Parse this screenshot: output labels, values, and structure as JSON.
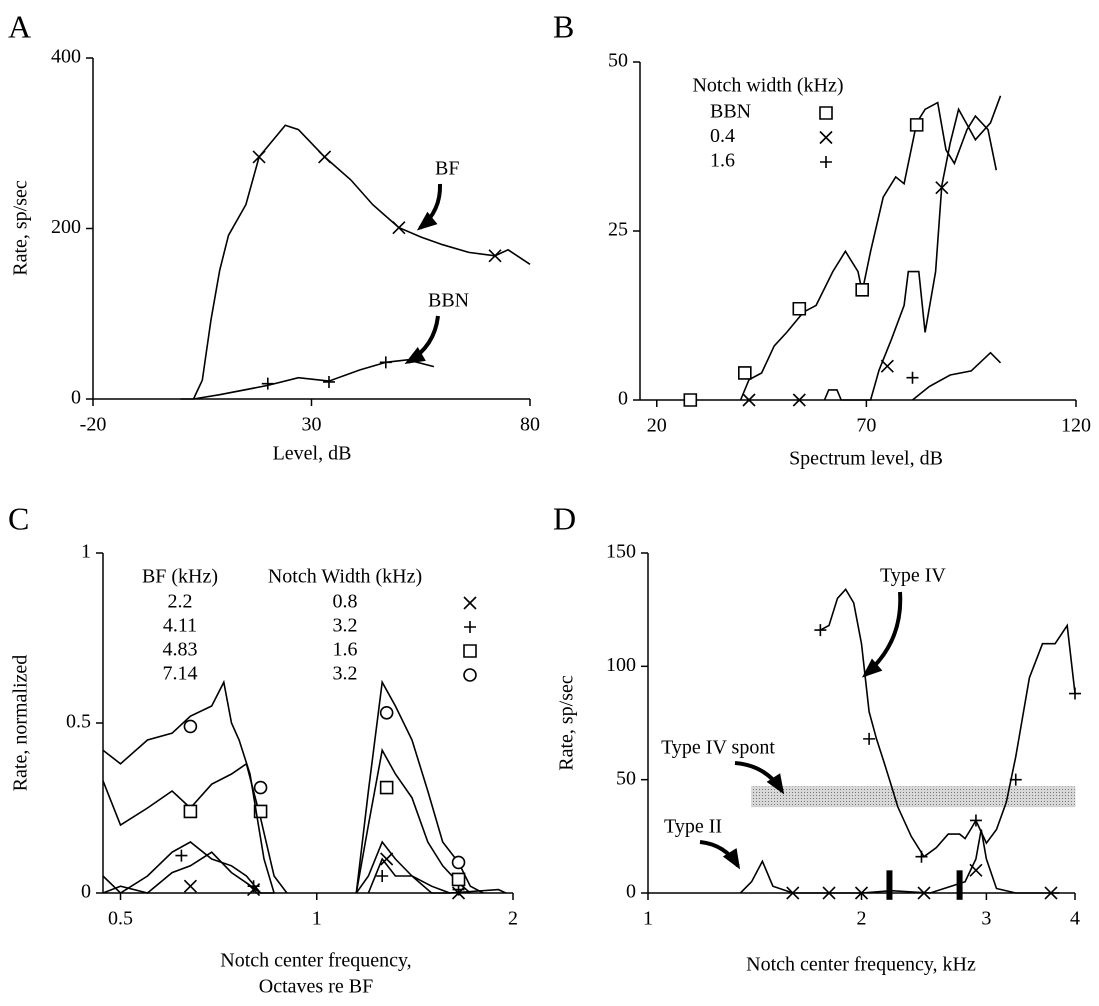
{
  "chart_data": [
    {
      "type": "line",
      "title": "A",
      "xlabel": [
        "Level, dB"
      ],
      "ylabel": "Rate, sp/sec",
      "color": "#000000",
      "xlim": [
        -20,
        80
      ],
      "xticks": [
        -20,
        30,
        80
      ],
      "ylim": [
        0,
        400
      ],
      "yticks": [
        0,
        200,
        400
      ],
      "log": false,
      "series": [
        {
          "name": "BF",
          "marker": "x",
          "x": [
            3,
            5,
            7,
            9,
            11,
            15,
            18,
            24,
            27,
            33,
            39,
            44,
            50,
            55,
            60,
            66,
            72,
            75,
            80
          ],
          "values": [
            0,
            22,
            93,
            151,
            192,
            228,
            284,
            321,
            316,
            284,
            257,
            228,
            201,
            190,
            181,
            172,
            168,
            175,
            158
          ],
          "markers": {
            "x": [
              18,
              33,
              50,
              72
            ],
            "values": [
              284,
              284,
              201,
              168
            ]
          }
        },
        {
          "name": "BBN",
          "marker": "+",
          "x": [
            0,
            3,
            9,
            20,
            27,
            34,
            41,
            47,
            52,
            58
          ],
          "values": [
            0,
            0,
            5,
            16,
            25,
            21,
            34,
            43,
            46,
            38
          ],
          "markers": {
            "x": [
              20,
              34,
              47
            ],
            "values": [
              18,
              20,
              43
            ]
          }
        }
      ],
      "annotations": [
        {
          "text": "BF"
        },
        {
          "text": "BBN"
        }
      ]
    },
    {
      "type": "line",
      "title": "B",
      "xlabel": [
        "Spectrum level, dB"
      ],
      "color": "#000000",
      "xlim": [
        16,
        120
      ],
      "xticks": [
        20,
        70,
        120
      ],
      "ylim": [
        0,
        50
      ],
      "yticks": [
        0,
        25,
        50
      ],
      "log": false,
      "legend_title": "Notch width (kHz)",
      "series": [
        {
          "name": "BBN",
          "marker": "square",
          "x": [
            40,
            42,
            45,
            48,
            51,
            55,
            58,
            62,
            65,
            68,
            69,
            71,
            74,
            77,
            79,
            82,
            84,
            87,
            89,
            91,
            94,
            96,
            99,
            101
          ],
          "values": [
            0,
            3,
            4,
            8,
            10,
            13,
            14,
            19,
            22,
            19,
            16,
            22,
            30,
            33,
            32,
            41,
            43,
            44,
            37,
            35,
            40,
            42,
            40,
            34
          ],
          "markers": {
            "x": [
              28,
              41,
              54,
              69,
              82
            ],
            "values": [
              0,
              4,
              13.5,
              16.3,
              40.7
            ]
          }
        },
        {
          "name": "0.4",
          "marker": "x",
          "x": [
            60,
            61,
            63,
            64,
            71,
            73,
            76,
            79,
            80,
            82.5,
            84,
            86.5,
            88,
            90,
            92,
            96,
            99.6,
            102
          ],
          "values": [
            0,
            1.5,
            1.5,
            0,
            0,
            4.4,
            9,
            14,
            19,
            19,
            10,
            19,
            31.7,
            38,
            43,
            38.5,
            41,
            45
          ],
          "markers": {
            "x": [
              42,
              54,
              75,
              88
            ],
            "values": [
              0,
              0,
              5,
              31.4
            ]
          }
        },
        {
          "name": "1.6",
          "marker": "+",
          "x": [
            81,
            85,
            90,
            95,
            99.6,
            102
          ],
          "values": [
            0,
            2,
            3.7,
            4.3,
            7,
            5.5
          ],
          "markers": {
            "x": [
              81
            ],
            "values": [
              3.3
            ]
          }
        }
      ]
    },
    {
      "type": "line",
      "title": "C",
      "xlabel": [
        "Notch center frequency,",
        "Octaves re BF"
      ],
      "ylabel": "Rate, normalized",
      "color": "#000000",
      "xlim": [
        0.47,
        2
      ],
      "xticks": [
        0.5,
        1,
        2
      ],
      "ylim": [
        0,
        1
      ],
      "yticks": [
        0,
        0.5,
        1
      ],
      "log": true,
      "legend_headers": [
        "BF (kHz)",
        "Notch Width (kHz)"
      ],
      "series": [
        {
          "name": "2.2",
          "notch_width": "0.8",
          "marker": "x",
          "x": [
            0.47,
            0.5,
            0.55,
            0.6,
            0.64,
            0.69,
            0.74,
            0.78,
            0.82,
            1.0,
            1.2,
            1.26,
            1.32,
            1.4,
            1.5,
            1.6,
            1.9,
            1.95
          ],
          "values": [
            0,
            0.02,
            0,
            0.06,
            0.08,
            0.12,
            0.06,
            0.03,
            0,
            null,
            0,
            0.1,
            0.05,
            0.05,
            0,
            0,
            0.01,
            0
          ],
          "markers": {
            "x": [
              0.64,
              0.8,
              1.28,
              1.65
            ],
            "values": [
              0.02,
              0.01,
              0.1,
              0
            ]
          }
        },
        {
          "name": "4.11",
          "notch_width": "3.2",
          "marker": "+",
          "x": [
            0.47,
            0.5,
            0.55,
            0.6,
            0.64,
            0.69,
            0.74,
            0.78,
            0.82,
            0.86,
            1.0,
            1.15,
            1.2,
            1.26,
            1.32,
            1.4,
            1.5,
            1.6
          ],
          "values": [
            0.05,
            0,
            0.05,
            0.12,
            0.15,
            0.1,
            0.08,
            0.05,
            0,
            0,
            null,
            0,
            0.05,
            0.15,
            0.1,
            0.05,
            0.02,
            0
          ],
          "markers": {
            "x": [
              0.62,
              0.8,
              1.26,
              1.65
            ],
            "values": [
              0.11,
              0.02,
              0.05,
              0.01
            ]
          }
        },
        {
          "name": "4.83",
          "notch_width": "1.6",
          "marker": "square",
          "x": [
            0.47,
            0.5,
            0.55,
            0.6,
            0.64,
            0.69,
            0.74,
            0.78,
            0.82,
            0.86,
            0.9,
            1.0,
            1.15,
            1.2,
            1.26,
            1.32,
            1.4,
            1.48,
            1.56,
            1.65,
            1.72
          ],
          "values": [
            0.33,
            0.2,
            0.25,
            0.3,
            0.25,
            0.32,
            0.35,
            0.38,
            0.22,
            0.05,
            0,
            null,
            0,
            0.2,
            0.42,
            0.35,
            0.28,
            0.15,
            0.08,
            0.03,
            0
          ],
          "markers": {
            "x": [
              0.64,
              0.82,
              1.28,
              1.65
            ],
            "values": [
              0.24,
              0.24,
              0.31,
              0.04
            ]
          }
        },
        {
          "name": "7.14",
          "notch_width": "3.2",
          "marker": "circle",
          "x": [
            0.47,
            0.5,
            0.55,
            0.6,
            0.64,
            0.69,
            0.72,
            0.74,
            0.76,
            0.79,
            0.83,
            0.86,
            1.0,
            1.15,
            1.2,
            1.26,
            1.32,
            1.4,
            1.48,
            1.56,
            1.65,
            1.72,
            1.8
          ],
          "values": [
            0.42,
            0.38,
            0.45,
            0.47,
            0.52,
            0.55,
            0.62,
            0.5,
            0.45,
            0.35,
            0.1,
            0,
            null,
            0,
            0.3,
            0.62,
            0.55,
            0.45,
            0.3,
            0.15,
            0.09,
            0.02,
            0
          ],
          "markers": {
            "x": [
              0.64,
              0.82,
              1.28,
              1.65
            ],
            "values": [
              0.49,
              0.31,
              0.53,
              0.09
            ]
          }
        }
      ]
    },
    {
      "type": "line",
      "title": "D",
      "xlabel": [
        "Notch center frequency, kHz"
      ],
      "ylabel": "Rate, sp/sec",
      "color": "#000000",
      "xlim": [
        1,
        4
      ],
      "xticks": [
        1,
        2,
        3,
        4
      ],
      "ylim": [
        0,
        150
      ],
      "yticks": [
        0,
        50,
        100,
        150
      ],
      "log": true,
      "band": {
        "x": [
          1.4,
          4.0
        ],
        "values": [
          38,
          47
        ],
        "color": "#bdbdbd"
      },
      "bars_x": [
        2.19,
        2.75
      ],
      "bars_range": [
        -3,
        10
      ],
      "series": [
        {
          "name": "Type IV",
          "marker": "+",
          "x": [
            1.75,
            1.8,
            1.85,
            1.9,
            1.95,
            2.0,
            2.05,
            2.1,
            2.15,
            2.2,
            2.25,
            2.35,
            2.45,
            2.55,
            2.65,
            2.75,
            2.8,
            2.85,
            2.9,
            3.0,
            3.1,
            3.2,
            3.3,
            3.45,
            3.6,
            3.75,
            3.9,
            4.0
          ],
          "values": [
            116,
            118,
            130,
            134,
            128,
            110,
            80,
            68,
            58,
            48,
            38,
            25,
            16,
            20,
            26,
            26,
            24,
            28,
            32,
            22,
            28,
            40,
            60,
            95,
            110,
            110,
            118,
            88
          ],
          "markers": {
            "x": [
              1.75,
              2.05,
              2.43,
              2.9,
              3.3,
              4.0
            ],
            "values": [
              116,
              68,
              16,
              32,
              50,
              88
            ]
          }
        },
        {
          "name": "Type II",
          "marker": "x",
          "x": [
            1.35,
            1.4,
            1.45,
            1.5,
            1.6,
            1.7,
            2.0,
            2.2,
            2.5,
            2.8,
            2.9,
            2.95,
            3.0,
            3.1,
            3.3,
            3.8
          ],
          "values": [
            0,
            5,
            14,
            3,
            0,
            0,
            0,
            1,
            0,
            5,
            15,
            28,
            15,
            2,
            0,
            0
          ],
          "markers": {
            "x": [
              1.6,
              1.8,
              2.0,
              2.45,
              2.9,
              3.7
            ],
            "values": [
              0,
              0,
              0,
              0,
              10,
              0
            ]
          }
        }
      ],
      "annotations": [
        {
          "text": "Type IV"
        },
        {
          "text": "Type IV spont"
        },
        {
          "text": "Type II"
        }
      ]
    }
  ]
}
